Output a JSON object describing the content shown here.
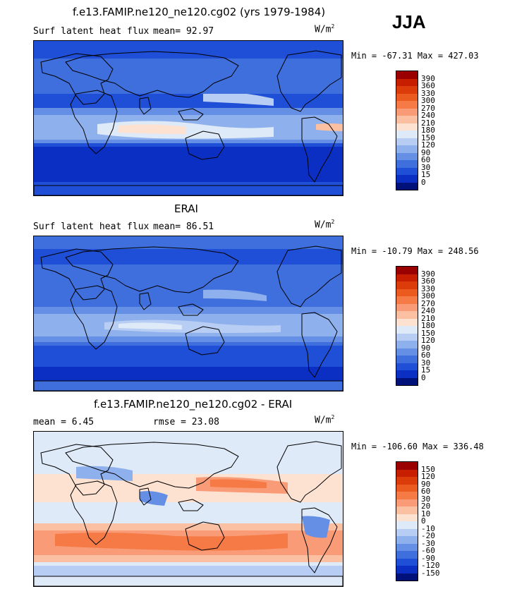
{
  "season": "JJA",
  "panels": [
    {
      "id": "model",
      "title": "f.e13.FAMIP.ne120_ne120.cg02 (yrs 1979-1984)",
      "left_label": "Surf latent heat flux",
      "stat1": "mean=  92.97",
      "stat2": "",
      "units": "W/m",
      "units_sup": "2",
      "minmax": "Min = -67.31 Max = 427.03",
      "levels": [
        "390",
        "360",
        "330",
        "300",
        "270",
        "240",
        "210",
        "180",
        "150",
        "120",
        "90",
        "60",
        "30",
        "15",
        "0"
      ],
      "colors": [
        "#9b0000",
        "#c81e00",
        "#dc3c0a",
        "#eb5a1e",
        "#f57a46",
        "#f99b76",
        "#fbbfa2",
        "#fde2d2",
        "#dfeaf8",
        "#b7cdf3",
        "#8eb0ec",
        "#648fe4",
        "#3f6fdc",
        "#1f4fd6",
        "#0a2fc2",
        "#00117a"
      ],
      "map_style": "model"
    },
    {
      "id": "obs",
      "title": "ERAI",
      "left_label": "Surf latent heat flux",
      "stat1": "mean=  86.51",
      "stat2": "",
      "units": "W/m",
      "units_sup": "2",
      "minmax": "Min = -10.79 Max = 248.56",
      "levels": [
        "390",
        "360",
        "330",
        "300",
        "270",
        "240",
        "210",
        "180",
        "150",
        "120",
        "90",
        "60",
        "30",
        "15",
        "0"
      ],
      "colors": [
        "#9b0000",
        "#c81e00",
        "#dc3c0a",
        "#eb5a1e",
        "#f57a46",
        "#f99b76",
        "#fbbfa2",
        "#fde2d2",
        "#dfeaf8",
        "#b7cdf3",
        "#8eb0ec",
        "#648fe4",
        "#3f6fdc",
        "#1f4fd6",
        "#0a2fc2",
        "#00117a"
      ],
      "map_style": "obs"
    },
    {
      "id": "diff",
      "title": "f.e13.FAMIP.ne120_ne120.cg02 - ERAI",
      "left_label": "mean =   6.45",
      "stat1": "rmse =  23.08",
      "stat2": "",
      "units": "W/m",
      "units_sup": "2",
      "minmax": "Min = -106.60 Max = 336.48",
      "levels": [
        "150",
        "120",
        "90",
        "60",
        "30",
        "20",
        "10",
        "0",
        "-10",
        "-20",
        "-30",
        "-60",
        "-90",
        "-120",
        "-150"
      ],
      "colors": [
        "#9b0000",
        "#c81e00",
        "#dc3c0a",
        "#eb5a1e",
        "#f57a46",
        "#f99b76",
        "#fbbfa2",
        "#fde2d2",
        "#dfeaf8",
        "#b7cdf3",
        "#8eb0ec",
        "#648fe4",
        "#3f6fdc",
        "#1f4fd6",
        "#0a2fc2",
        "#00117a"
      ],
      "map_style": "diff"
    }
  ]
}
